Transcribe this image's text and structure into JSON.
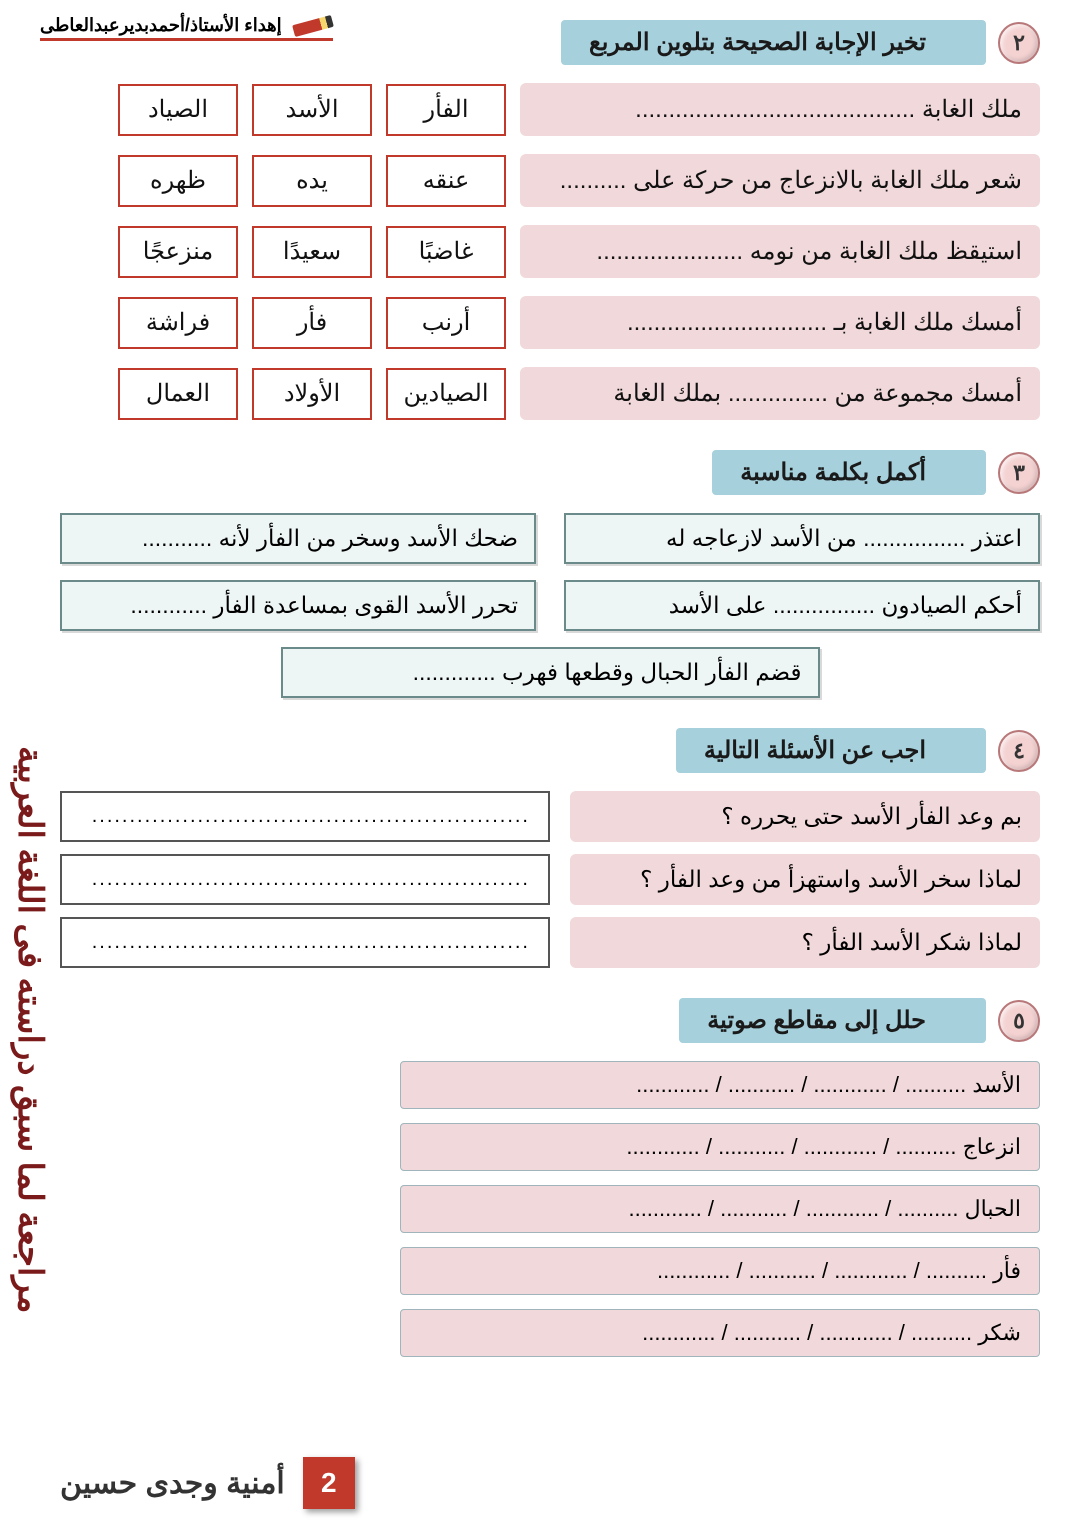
{
  "credit": "إهداء الأستاذ/أحمدبديرعبدالعاطى",
  "colors": {
    "badge_bg": "#f4d2d2",
    "title_bg": "#a6d0dc",
    "stem_bg": "#f1d8da",
    "opt_border": "#c0392b",
    "fill_border": "#6b8b8b",
    "side_text": "#7a1a1a",
    "page_badge": "#c0392b"
  },
  "q2": {
    "num": "٢",
    "title": "تخير الإجابة الصحيحة بتلوين المربع",
    "rows": [
      {
        "stem": "ملك الغابة ..........................................",
        "opts": [
          "الفأر",
          "الأسد",
          "الصياد"
        ]
      },
      {
        "stem": "شعر ملك الغابة بالانزعاج من حركة على ..........",
        "opts": [
          "عنقه",
          "يده",
          "ظهره"
        ]
      },
      {
        "stem": "استيقظ ملك الغابة من نومه ......................",
        "opts": [
          "غاضبًا",
          "سعيدًا",
          "منزعجًا"
        ]
      },
      {
        "stem": "أمسك ملك الغابة بـ ..............................",
        "opts": [
          "أرنب",
          "فأر",
          "فراشة"
        ]
      },
      {
        "stem": "أمسك مجموعة من ............... بملك الغابة",
        "opts": [
          "الصيادين",
          "الأولاد",
          "العمال"
        ]
      }
    ]
  },
  "q3": {
    "num": "٣",
    "title": "أكمل بكلمة مناسبة",
    "items": [
      "اعتذر ................ من الأسد لازعاجه له",
      "ضحك الأسد وسخر من الفأر لأنه ...........",
      "أحكم الصيادون ................ على الأسد",
      "تحرر الأسد القوى بمساعدة الفأر ............",
      "قضم الفأر الحبال وقطعها فهرب ............."
    ]
  },
  "q4": {
    "num": "٤",
    "title": "اجب عن الأسئلة التالية",
    "rows": [
      {
        "q": "بم وعد الفأر الأسد حتى يحرره ؟",
        "a": ".........................................................."
      },
      {
        "q": "لماذا سخر الأسد واستهزأ من وعد الفأر ؟",
        "a": ".........................................................."
      },
      {
        "q": "لماذا شكر الأسد الفأر ؟",
        "a": ".........................................................."
      }
    ]
  },
  "q5": {
    "num": "٥",
    "title": "حلل إلى مقاطع صوتية",
    "rows": [
      "الأسد   .......... / ............ / ........... / ............",
      "انزعاج  .......... / ............ / ........... / ............",
      "الحبال  .......... / ............ / ........... / ............",
      "فأر    .......... / ............ / ........... / ............",
      "شكر   .......... / ............ / ........... / ............"
    ]
  },
  "side_text": "مراجعة لما سبق دراسته فى اللغة العربية",
  "footer_name": "أمنية وجدى حسين",
  "page_number": "2"
}
